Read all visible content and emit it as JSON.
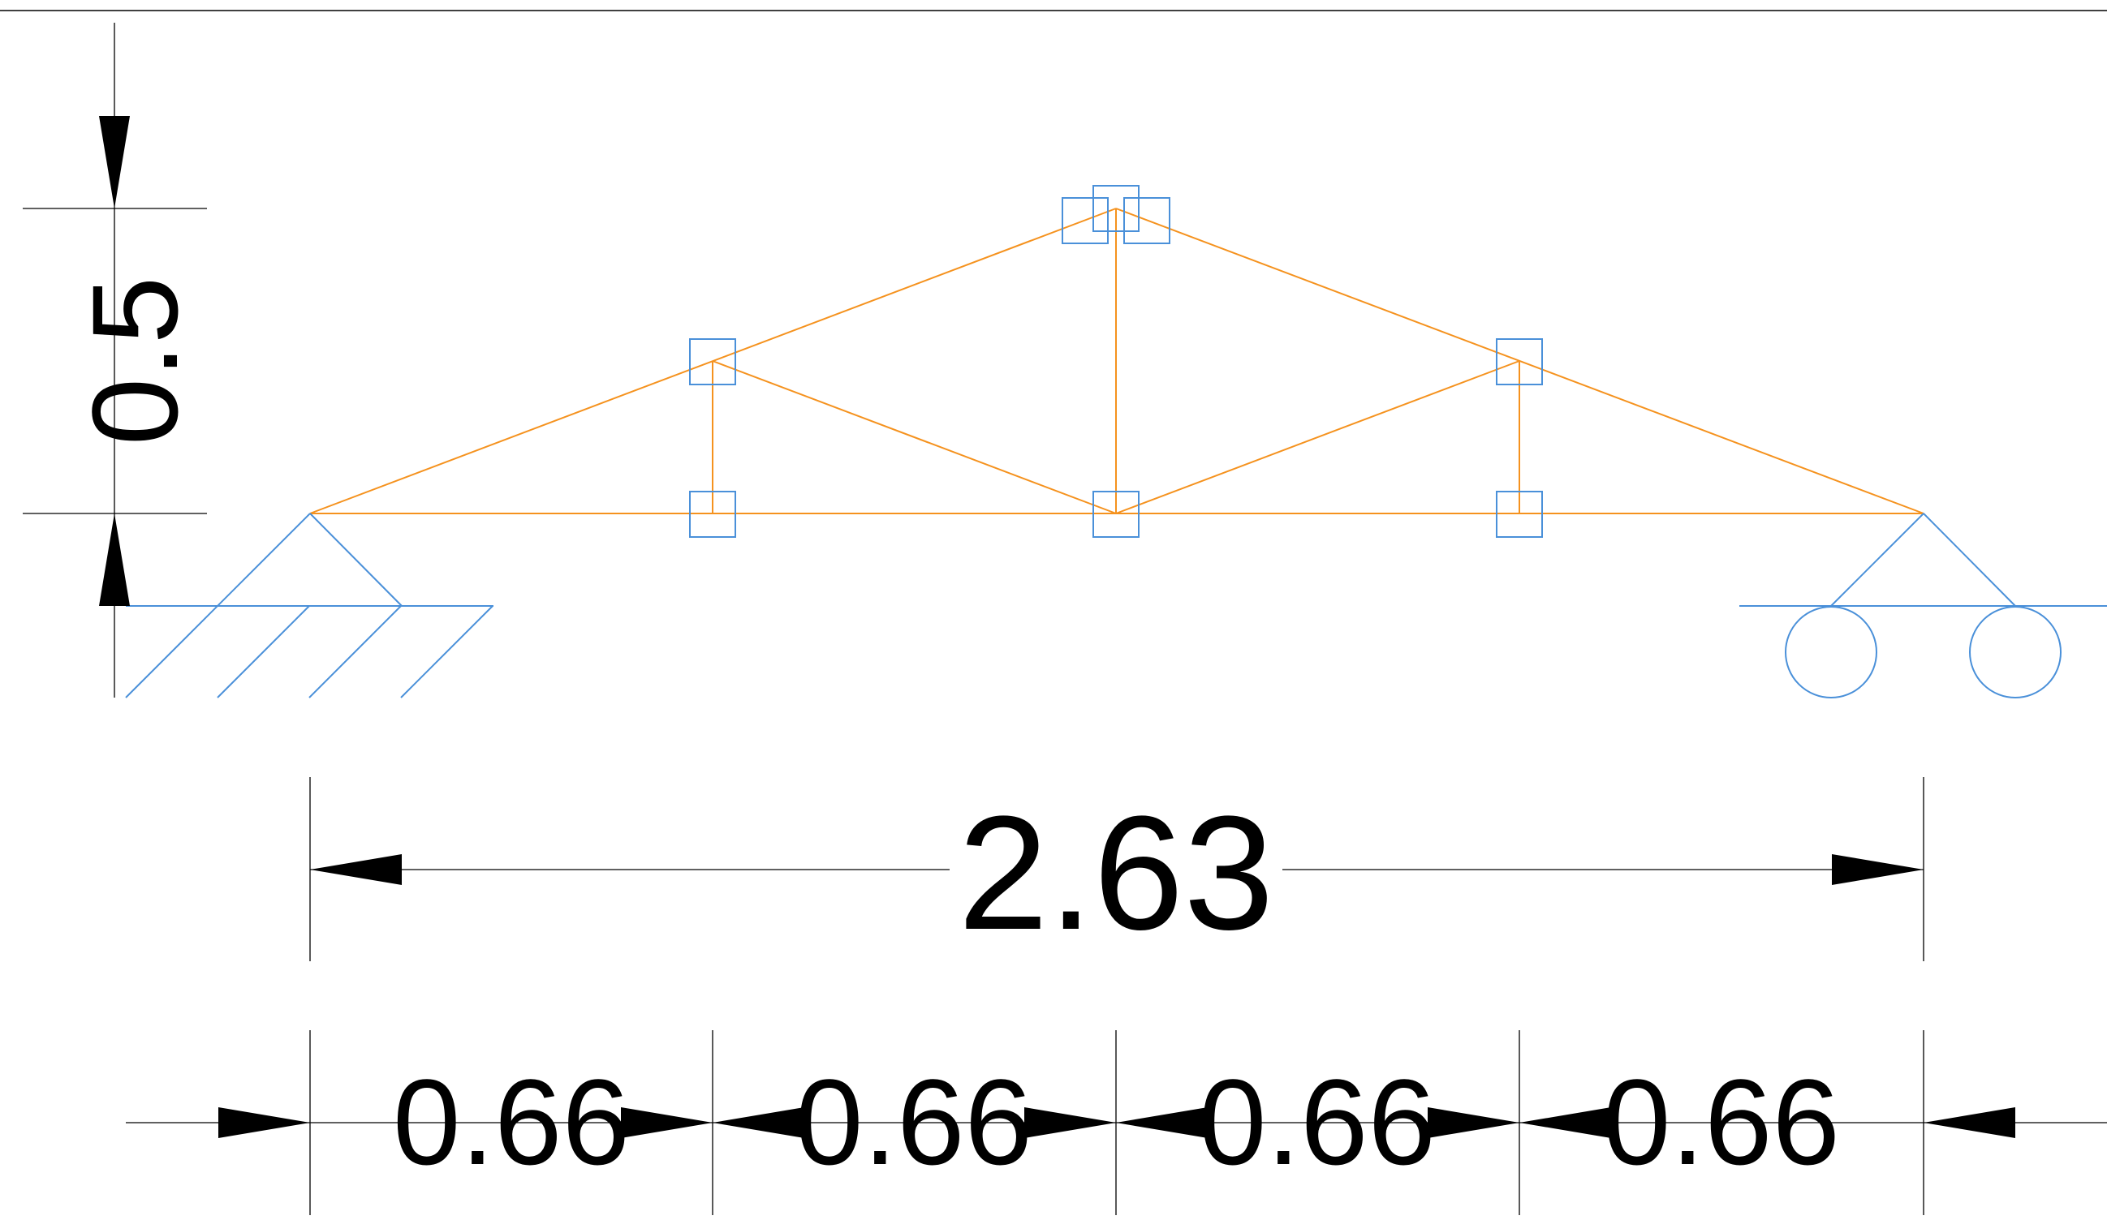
{
  "colors": {
    "member": "#f5921e",
    "support": "#4a90d9",
    "node_marker": "#4a90d9",
    "dimension": "#000000",
    "background": "#ffffff"
  },
  "dimensions": {
    "height": "0.5",
    "total_span": "2.63",
    "panels": [
      "0.66",
      "0.66",
      "0.66",
      "0.66"
    ]
  },
  "supports": {
    "left": "pinned-support-icon",
    "right": "roller-support-icon"
  }
}
